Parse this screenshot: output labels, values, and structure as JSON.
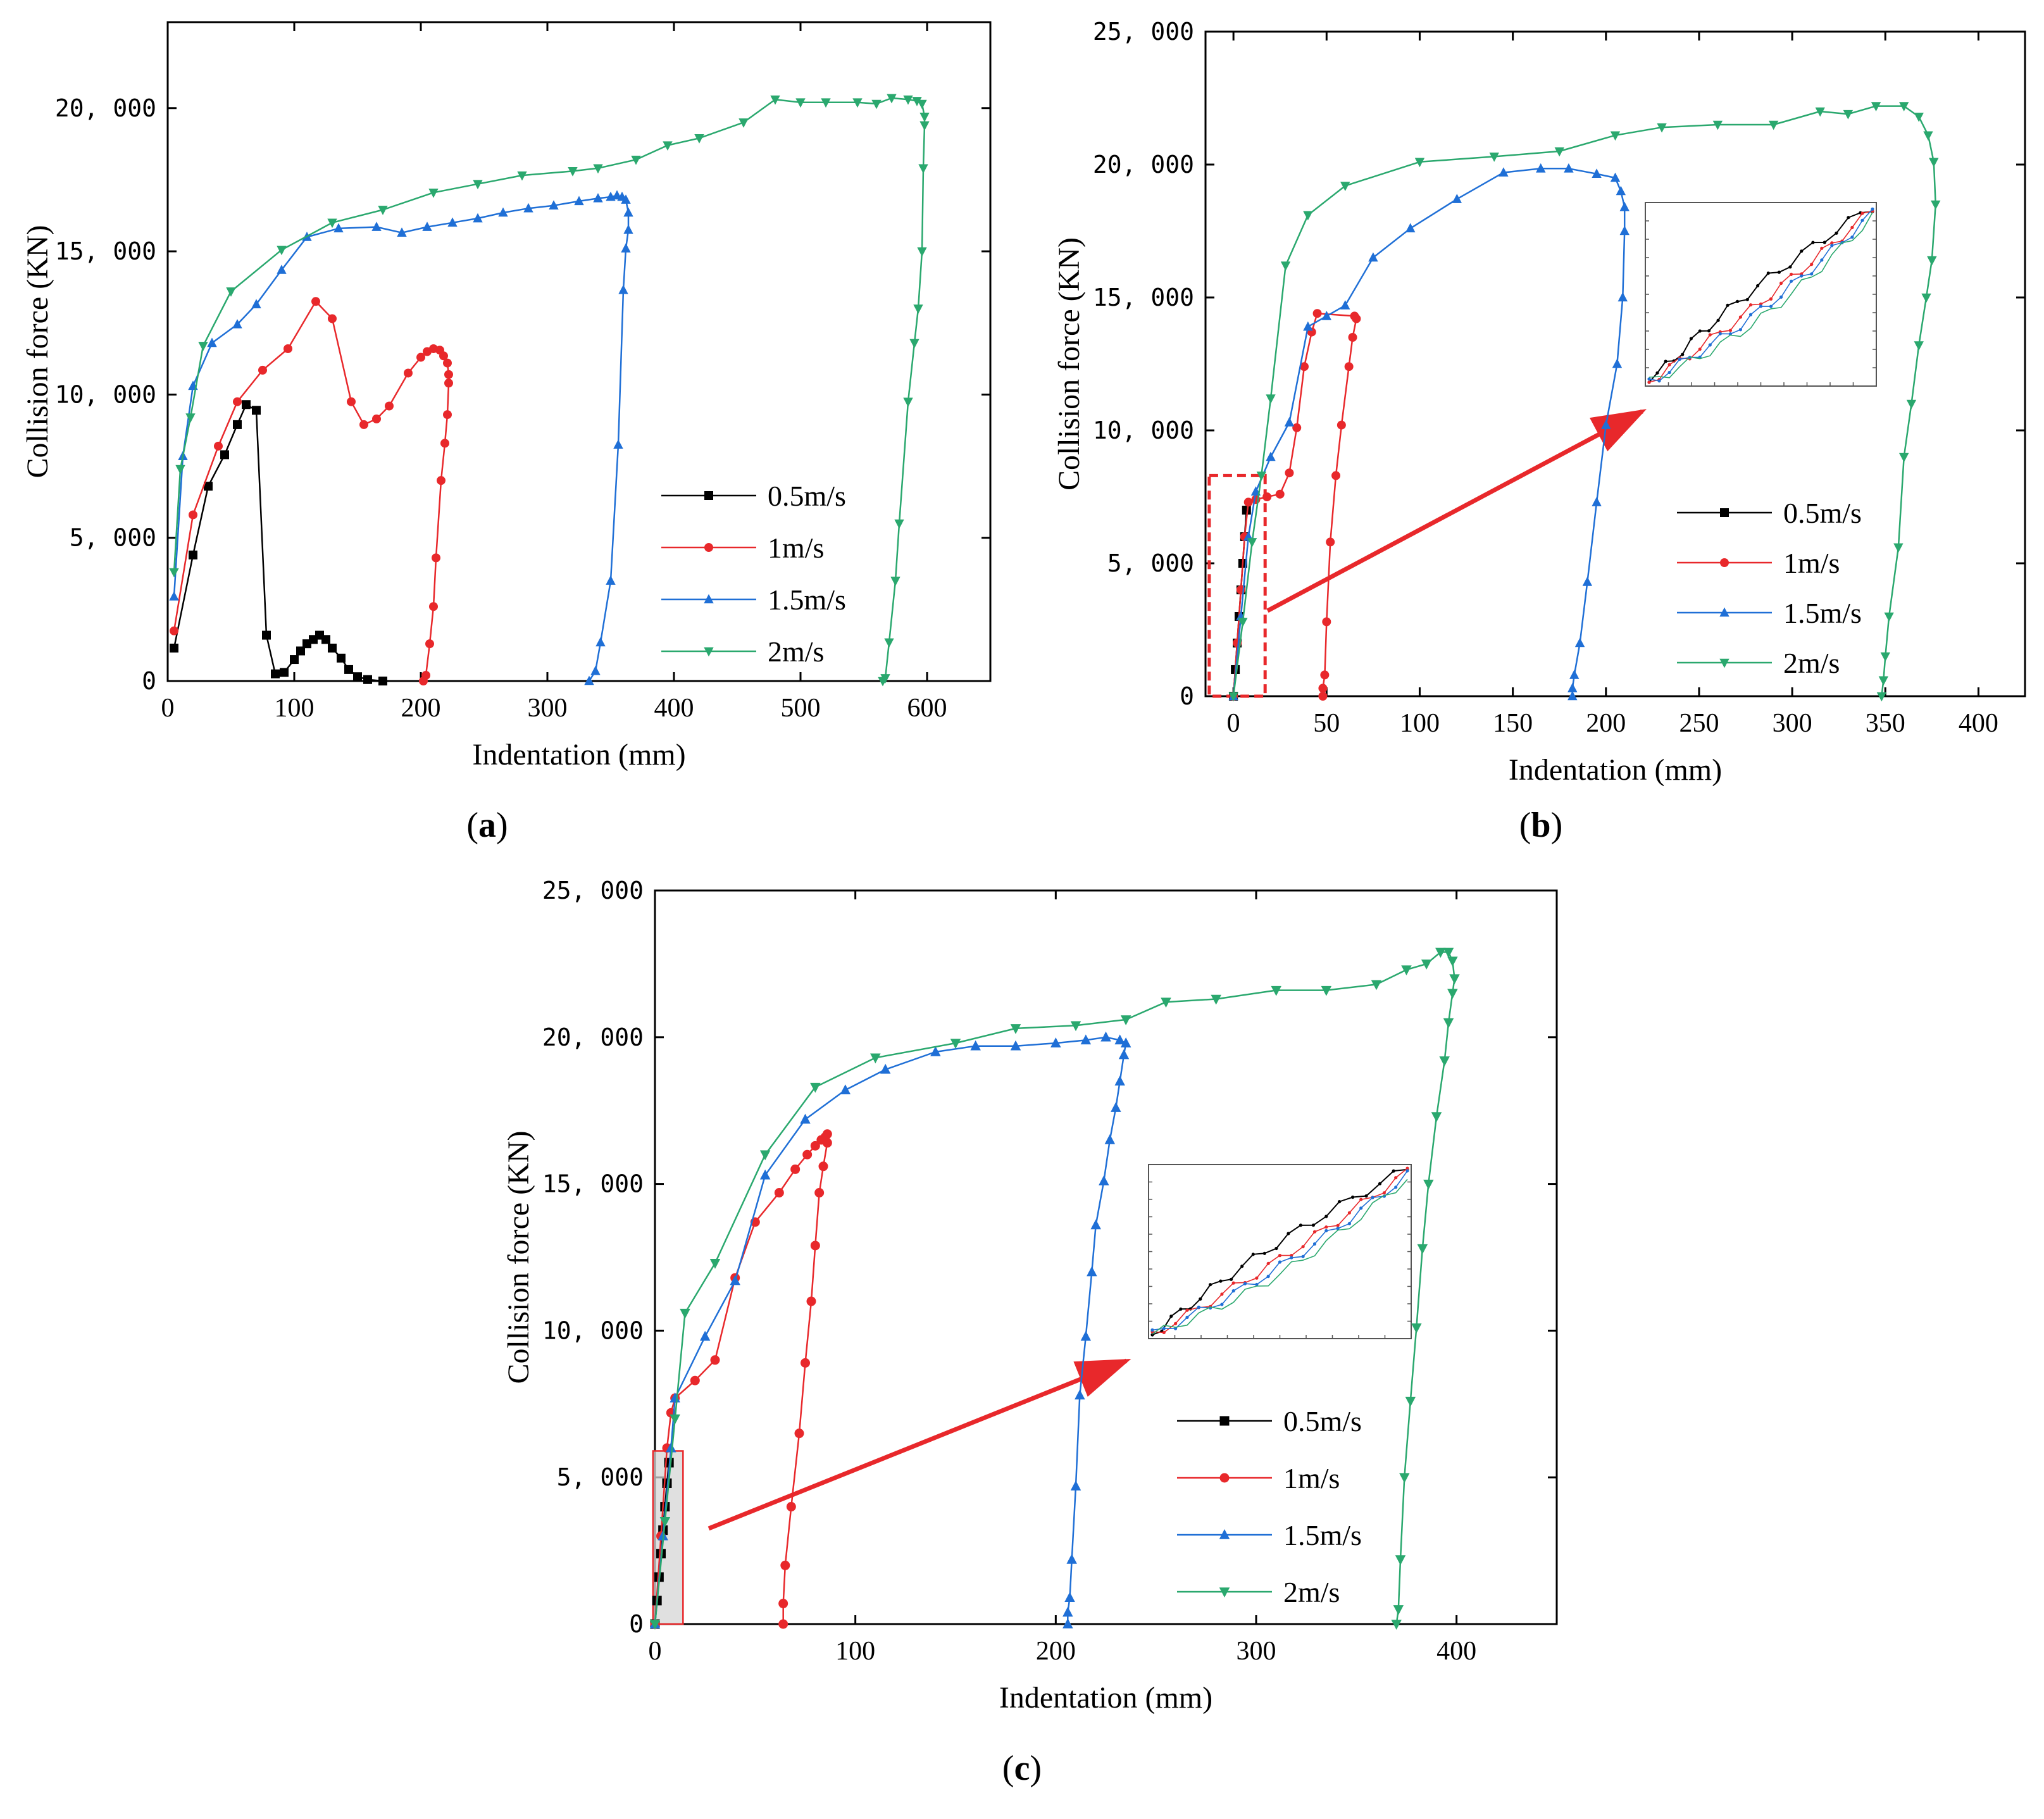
{
  "colors": {
    "s05": "#000000",
    "s1": "#e8282b",
    "s15": "#1f6fd6",
    "s2": "#2aa86e",
    "highlight": "#e8282b",
    "highlight_fill": "#d6d6d6"
  },
  "chart_data": [
    {
      "type": "line",
      "panel_label": "a",
      "xlabel": "Indentation (mm)",
      "ylabel": "Collision force (KN)",
      "xlim": [
        0,
        650
      ],
      "ylim": [
        0,
        23000
      ],
      "xticks": [
        0,
        100,
        200,
        300,
        400,
        500,
        600
      ],
      "xtick_labels": [
        "0",
        "100",
        "200",
        "300",
        "400",
        "500",
        "600"
      ],
      "yticks": [
        0,
        5000,
        10000,
        15000,
        20000
      ],
      "ytick_labels": [
        "0",
        "5, 000",
        "10, 000",
        "15, 000",
        "20, 000"
      ],
      "legend": [
        "0.5m/s",
        "1m/s",
        "1.5m/s",
        "2m/s"
      ],
      "series": [
        {
          "name": "0.5m/s",
          "marker": "square",
          "x": [
            5,
            20,
            32,
            45,
            55,
            62,
            70,
            78,
            85,
            92,
            100,
            105,
            110,
            115,
            120,
            125,
            130,
            137,
            143,
            150,
            158,
            170
          ],
          "y": [
            1150,
            4400,
            6800,
            7900,
            8950,
            9650,
            9450,
            1600,
            250,
            300,
            750,
            1050,
            1300,
            1450,
            1600,
            1450,
            1150,
            800,
            400,
            150,
            50,
            0
          ]
        },
        {
          "name": "1m/s",
          "marker": "circle",
          "x": [
            5,
            20,
            40,
            55,
            75,
            95,
            117,
            130,
            145,
            155,
            165,
            175,
            190,
            200,
            205,
            210,
            215,
            218,
            221,
            222,
            222,
            221,
            219,
            216,
            212,
            210,
            207,
            204,
            202
          ],
          "y": [
            1750,
            5800,
            8200,
            9750,
            10850,
            11600,
            13250,
            12650,
            9750,
            8950,
            9150,
            9600,
            10750,
            11300,
            11500,
            11600,
            11550,
            11350,
            11100,
            10700,
            10400,
            9300,
            8300,
            7000,
            4300,
            2600,
            1300,
            200,
            0
          ]
        },
        {
          "name": "1.5m/s",
          "marker": "triangle",
          "x": [
            5,
            12,
            20,
            35,
            55,
            70,
            90,
            110,
            135,
            165,
            185,
            205,
            225,
            245,
            265,
            285,
            305,
            325,
            340,
            350,
            355,
            359,
            362,
            364,
            364,
            362,
            360,
            356,
            350,
            342,
            338,
            333
          ],
          "y": [
            2950,
            7850,
            10300,
            11800,
            12450,
            13150,
            14350,
            15500,
            15800,
            15850,
            15650,
            15850,
            16000,
            16150,
            16350,
            16500,
            16600,
            16750,
            16850,
            16900,
            16950,
            16900,
            16800,
            16350,
            15750,
            15100,
            13650,
            8250,
            3500,
            1350,
            350,
            0
          ]
        },
        {
          "name": "2m/s",
          "marker": "triangle-down",
          "x": [
            5,
            10,
            18,
            28,
            50,
            90,
            130,
            170,
            210,
            245,
            280,
            320,
            340,
            370,
            395,
            420,
            455,
            480,
            500,
            520,
            545,
            560,
            572,
            585,
            592,
            596,
            598,
            598,
            597,
            596,
            593,
            590,
            585,
            578,
            575,
            570,
            567,
            565
          ],
          "y": [
            3800,
            7400,
            9200,
            11700,
            13600,
            15050,
            16000,
            16450,
            17050,
            17350,
            17650,
            17800,
            17900,
            18200,
            18700,
            18950,
            19500,
            20300,
            20200,
            20200,
            20200,
            20150,
            20350,
            20300,
            20250,
            20150,
            19700,
            19400,
            17900,
            15000,
            13000,
            11800,
            9750,
            5500,
            3500,
            1350,
            100,
            0
          ]
        }
      ]
    },
    {
      "type": "line",
      "panel_label": "b",
      "xlabel": "Indentation (mm)",
      "ylabel": "Collision force (KN)",
      "xlim": [
        -15,
        425
      ],
      "ylim": [
        0,
        25000
      ],
      "xticks": [
        0,
        50,
        100,
        150,
        200,
        250,
        300,
        350,
        400
      ],
      "xtick_labels": [
        "0",
        "50",
        "100",
        "150",
        "200",
        "250",
        "300",
        "350",
        "400"
      ],
      "yticks": [
        0,
        5000,
        10000,
        15000,
        20000,
        25000
      ],
      "ytick_labels": [
        "0",
        "5, 000",
        "10, 000",
        "15, 000",
        "20, 000",
        "25, 000"
      ],
      "legend": [
        "0.5m/s",
        "1m/s",
        "1.5m/s",
        "2m/s"
      ],
      "series": [
        {
          "name": "0.5m/s",
          "marker": "square",
          "x": [
            0,
            1,
            2,
            3,
            4,
            5,
            6,
            7
          ],
          "y": [
            0,
            1000,
            2000,
            3000,
            4000,
            5000,
            6000,
            7000
          ]
        },
        {
          "name": "1m/s",
          "marker": "circle",
          "x": [
            0,
            2,
            4,
            6,
            8,
            12,
            18,
            25,
            30,
            34,
            38,
            42,
            45,
            65,
            66,
            64,
            62,
            58,
            55,
            52,
            50,
            49,
            48,
            48
          ],
          "y": [
            0,
            2000,
            4000,
            6000,
            7300,
            7400,
            7500,
            7600,
            8400,
            10100,
            12400,
            13700,
            14400,
            14300,
            14200,
            13500,
            12400,
            10200,
            8300,
            5800,
            2800,
            800,
            300,
            0
          ]
        },
        {
          "name": "1.5m/s",
          "marker": "triangle",
          "x": [
            0,
            4,
            8,
            12,
            20,
            30,
            40,
            50,
            60,
            75,
            95,
            120,
            145,
            165,
            180,
            195,
            205,
            208,
            210,
            210,
            209,
            206,
            200,
            195,
            190,
            186,
            183,
            182,
            182
          ],
          "y": [
            0,
            3000,
            6000,
            7700,
            9000,
            10300,
            13900,
            14300,
            14700,
            16500,
            17600,
            18700,
            19700,
            19850,
            19850,
            19650,
            19500,
            19000,
            18400,
            17500,
            15000,
            12500,
            10200,
            7300,
            4300,
            2000,
            800,
            300,
            0
          ]
        },
        {
          "name": "2m/s",
          "marker": "triangle-down",
          "x": [
            0,
            5,
            10,
            15,
            20,
            28,
            40,
            60,
            100,
            140,
            175,
            205,
            230,
            260,
            290,
            315,
            330,
            345,
            360,
            368,
            373,
            376,
            377,
            375,
            372,
            368,
            364,
            360,
            357,
            352,
            350,
            349,
            348
          ],
          "y": [
            0,
            2800,
            5800,
            8300,
            11200,
            16200,
            18100,
            19200,
            20100,
            20300,
            20500,
            21100,
            21400,
            21500,
            21500,
            22000,
            21900,
            22200,
            22200,
            21800,
            21100,
            20100,
            18500,
            16400,
            15000,
            13200,
            11000,
            9000,
            5600,
            3000,
            1500,
            600,
            0
          ]
        }
      ]
    },
    {
      "type": "line",
      "panel_label": "c",
      "xlabel": "Indentation (mm)",
      "ylabel": "Collision force (KN)",
      "xlim": [
        0,
        450
      ],
      "ylim": [
        0,
        25000
      ],
      "xticks": [
        0,
        100,
        200,
        300,
        400
      ],
      "xtick_labels": [
        "0",
        "100",
        "200",
        "300",
        "400"
      ],
      "yticks": [
        0,
        5000,
        10000,
        15000,
        20000,
        25000
      ],
      "ytick_labels": [
        "0",
        "5, 000",
        "10, 000",
        "15, 000",
        "20, 000",
        "25, 000"
      ],
      "legend": [
        "0.5m/s",
        "1m/s",
        "1.5m/s",
        "2m/s"
      ],
      "series": [
        {
          "name": "0.5m/s",
          "marker": "square",
          "x": [
            0,
            1,
            2,
            3,
            4,
            5,
            6,
            7
          ],
          "y": [
            0,
            800,
            1600,
            2400,
            3200,
            4000,
            4800,
            5500
          ]
        },
        {
          "name": "1m/s",
          "marker": "circle",
          "x": [
            0,
            3,
            6,
            8,
            10,
            20,
            30,
            40,
            50,
            62,
            70,
            76,
            80,
            83,
            85,
            86,
            86,
            84,
            82,
            80,
            78,
            75,
            72,
            68,
            65,
            64,
            64
          ],
          "y": [
            0,
            3000,
            6000,
            7200,
            7700,
            8300,
            9000,
            11800,
            13700,
            14700,
            15500,
            16000,
            16300,
            16500,
            16600,
            16700,
            16400,
            15600,
            14700,
            12900,
            11000,
            8900,
            6500,
            4000,
            2000,
            700,
            0
          ]
        },
        {
          "name": "1.5m/s",
          "marker": "triangle",
          "x": [
            0,
            4,
            8,
            10,
            25,
            40,
            55,
            75,
            95,
            115,
            140,
            160,
            180,
            200,
            215,
            225,
            232,
            235,
            234,
            232,
            230,
            227,
            224,
            220,
            218,
            215,
            212,
            210,
            208,
            207,
            206,
            206
          ],
          "y": [
            0,
            3000,
            6000,
            7700,
            9800,
            11700,
            15300,
            17200,
            18200,
            18900,
            19500,
            19700,
            19700,
            19800,
            19900,
            20000,
            19900,
            19800,
            19400,
            18500,
            17600,
            16500,
            15100,
            13600,
            12000,
            9800,
            7800,
            4700,
            2200,
            900,
            400,
            0
          ]
        },
        {
          "name": "2m/s",
          "marker": "triangle-down",
          "x": [
            0,
            5,
            10,
            15,
            30,
            55,
            80,
            110,
            150,
            180,
            210,
            235,
            255,
            280,
            310,
            335,
            360,
            375,
            385,
            392,
            396,
            398,
            399,
            398,
            396,
            394,
            390,
            386,
            383,
            380,
            377,
            374,
            372,
            371,
            370
          ],
          "y": [
            0,
            3500,
            7000,
            10600,
            12300,
            16000,
            18300,
            19300,
            19800,
            20300,
            20400,
            20600,
            21200,
            21300,
            21600,
            21600,
            21800,
            22300,
            22500,
            22900,
            22900,
            22600,
            22000,
            21500,
            20500,
            19200,
            17300,
            15000,
            12800,
            10100,
            7600,
            5000,
            2200,
            500,
            0
          ]
        }
      ]
    }
  ]
}
